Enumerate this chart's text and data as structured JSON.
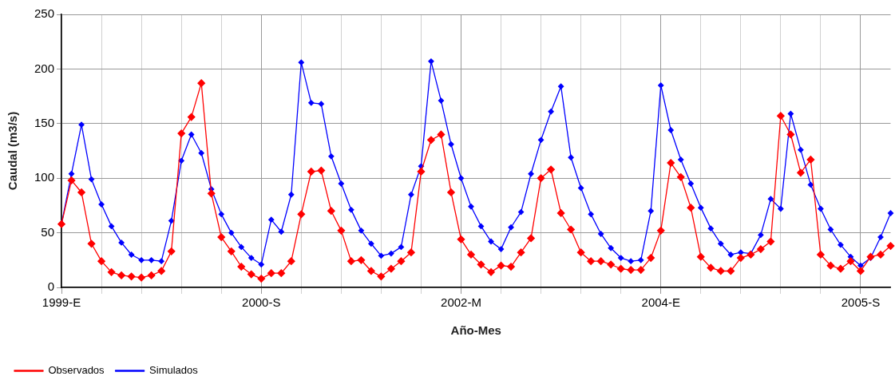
{
  "chart_data": {
    "type": "line",
    "xlabel": "Año-Mes",
    "ylabel": "Caudal (m3/s)",
    "categories": [
      "1999-E",
      null,
      null,
      null,
      null,
      null,
      null,
      null,
      null,
      null,
      null,
      null,
      null,
      null,
      null,
      null,
      null,
      null,
      null,
      null,
      "2000-S",
      null,
      null,
      null,
      null,
      null,
      null,
      null,
      null,
      null,
      null,
      null,
      null,
      null,
      null,
      null,
      null,
      null,
      null,
      null,
      "2002-M",
      null,
      null,
      null,
      null,
      null,
      null,
      null,
      null,
      null,
      null,
      null,
      null,
      null,
      null,
      null,
      null,
      null,
      null,
      null,
      "2004-E",
      null,
      null,
      null,
      null,
      null,
      null,
      null,
      null,
      null,
      null,
      null,
      null,
      null,
      null,
      null,
      null,
      null,
      null,
      null,
      "2005-S",
      null,
      null,
      null
    ],
    "series": [
      {
        "name": "Observados",
        "color": "#ff0000",
        "values": [
          58,
          98,
          87,
          40,
          24,
          14,
          11,
          10,
          9,
          11,
          15,
          33,
          141,
          156,
          187,
          86,
          46,
          33,
          19,
          12,
          8,
          13,
          13,
          24,
          67,
          106,
          107,
          70,
          52,
          24,
          25,
          15,
          10,
          17,
          24,
          32,
          106,
          135,
          140,
          87,
          44,
          30,
          21,
          14,
          20,
          19,
          32,
          45,
          100,
          108,
          68,
          53,
          32,
          24,
          24,
          21,
          17,
          16,
          16,
          27,
          52,
          114,
          101,
          73,
          28,
          18,
          15,
          15,
          27,
          30,
          35,
          42,
          157,
          140,
          105,
          117,
          30,
          20,
          17,
          24,
          15,
          28,
          30,
          38
        ]
      },
      {
        "name": "Simulados",
        "color": "#0000ff",
        "values": [
          58,
          104,
          149,
          99,
          76,
          56,
          41,
          30,
          25,
          25,
          24,
          61,
          116,
          140,
          123,
          90,
          67,
          50,
          37,
          27,
          21,
          62,
          51,
          85,
          206,
          169,
          168,
          120,
          95,
          71,
          52,
          40,
          29,
          31,
          37,
          85,
          111,
          207,
          171,
          131,
          100,
          74,
          56,
          42,
          35,
          55,
          69,
          104,
          135,
          161,
          184,
          119,
          91,
          67,
          49,
          36,
          27,
          24,
          25,
          70,
          185,
          144,
          117,
          95,
          73,
          54,
          40,
          30,
          32,
          31,
          48,
          81,
          72,
          159,
          126,
          94,
          72,
          53,
          39,
          28,
          20,
          27,
          46,
          68
        ]
      }
    ],
    "ylim": [
      0,
      250
    ],
    "yticks": [
      0,
      50,
      100,
      150,
      200,
      250
    ],
    "grid": true,
    "legend": "bottom left",
    "marker": "diamond",
    "line_style": "solid"
  }
}
